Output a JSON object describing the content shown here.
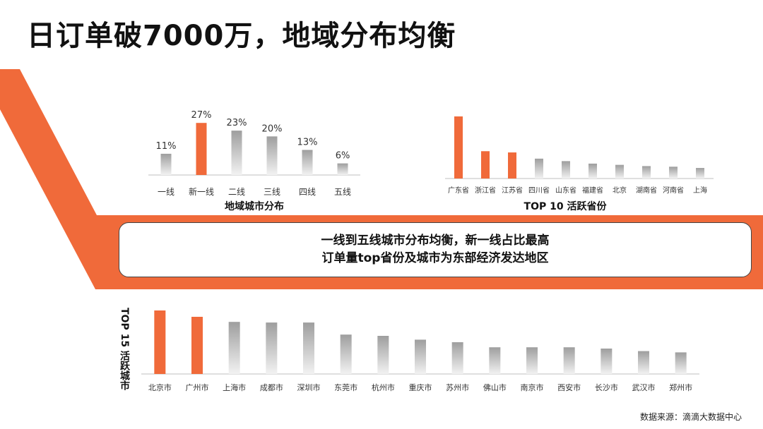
{
  "title": "日订单破7000万，地域分布均衡",
  "summary": {
    "line1": "一线到五线城市分布均衡，新一线占比最高",
    "line2": "订单量top省份及城市为东部经济发达地区"
  },
  "source": "数据来源：滴滴大数据中心",
  "colors": {
    "accent": "#F06A3A",
    "bar_gray": "#C8C8C8"
  },
  "chart_data": [
    {
      "type": "bar",
      "title": "地域城市分布",
      "categories": [
        "一线",
        "新一线",
        "二线",
        "三线",
        "四线",
        "五线"
      ],
      "values": [
        11,
        27,
        23,
        20,
        13,
        6
      ],
      "value_labels": [
        "11%",
        "27%",
        "23%",
        "20%",
        "13%",
        "6%"
      ],
      "highlight": [
        1
      ],
      "ylim": [
        0,
        30
      ]
    },
    {
      "type": "bar",
      "title": "TOP 10 活跃省份",
      "categories": [
        "广东省",
        "浙江省",
        "江苏省",
        "四川省",
        "山东省",
        "福建省",
        "北京",
        "湖南省",
        "河南省",
        "上海"
      ],
      "values": [
        100,
        44,
        42,
        32,
        28,
        24,
        22,
        20,
        19,
        17
      ],
      "highlight": [
        0,
        1,
        2
      ],
      "ylim": [
        0,
        100
      ]
    },
    {
      "type": "bar",
      "title": "TOP 15 活跃城市",
      "categories": [
        "北京市",
        "广州市",
        "上海市",
        "成都市",
        "深圳市",
        "东莞市",
        "杭州市",
        "重庆市",
        "苏州市",
        "佛山市",
        "南京市",
        "西安市",
        "长沙市",
        "武汉市",
        "郑州市"
      ],
      "values": [
        100,
        90,
        82,
        81,
        81,
        62,
        60,
        54,
        50,
        42,
        42,
        42,
        40,
        36,
        34
      ],
      "highlight": [
        0,
        1
      ],
      "ylim": [
        0,
        100
      ]
    }
  ]
}
